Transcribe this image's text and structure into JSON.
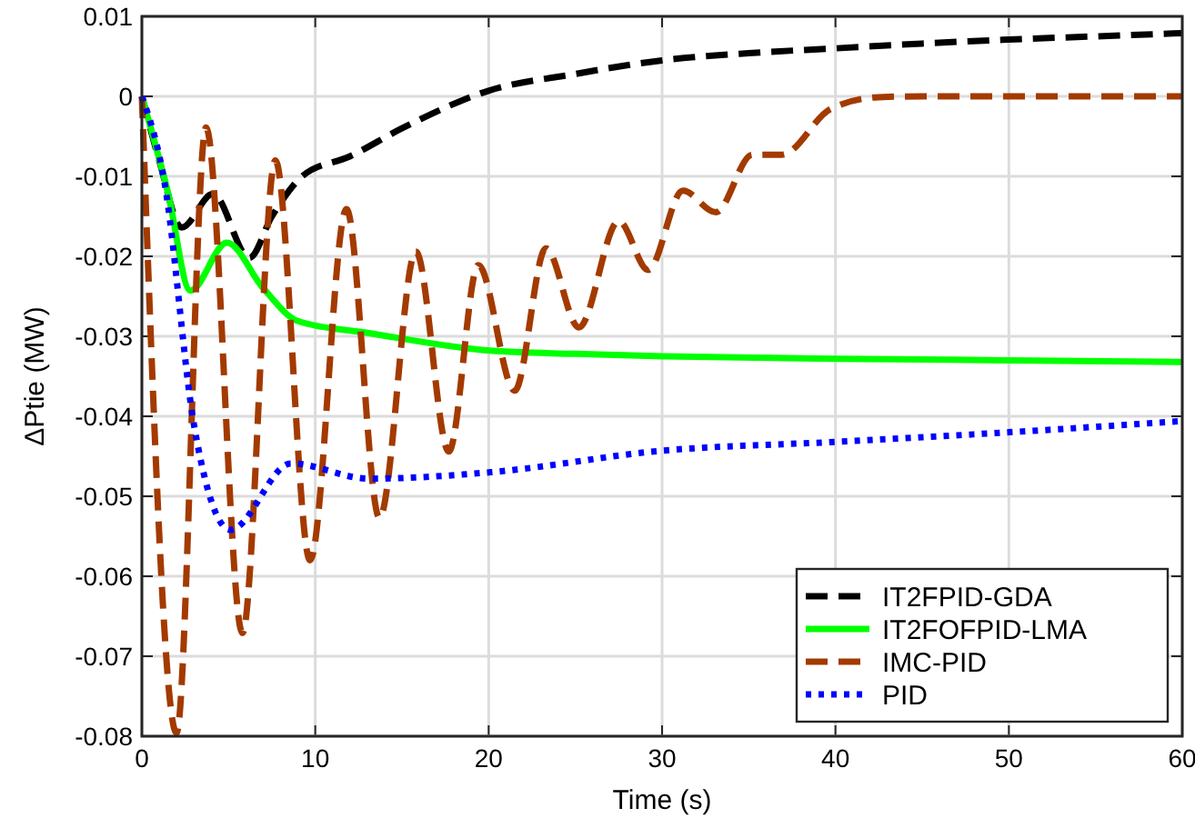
{
  "chart_data": {
    "type": "line",
    "xlabel": "Time (s)",
    "ylabel": "ΔPtie (MW)",
    "xlim": [
      0,
      60
    ],
    "ylim": [
      -0.08,
      0.01
    ],
    "xticks": [
      0,
      10,
      20,
      30,
      40,
      50,
      60
    ],
    "yticks": [
      {
        "value": 0.01,
        "label": "0.01"
      },
      0,
      {
        "value": -0.01,
        "label": "-0.01"
      },
      {
        "value": -0.02,
        "label": "-0.02"
      },
      {
        "value": -0.03,
        "label": "-0.03"
      },
      {
        "value": -0.04,
        "label": "-0.04"
      },
      {
        "value": -0.05,
        "label": "-0.05"
      },
      {
        "value": -0.06,
        "label": "-0.06"
      },
      {
        "value": -0.07,
        "label": "-0.07"
      },
      {
        "value": -0.08,
        "label": "-0.08"
      }
    ],
    "grid": true,
    "legend": "bottom right",
    "series": [
      {
        "name": "IT2FPID-GDA",
        "color": "#000000",
        "line_style": "dashed",
        "x": [
          0,
          1,
          2.3,
          4.1,
          6.2,
          7.5,
          9.3,
          12,
          15,
          20,
          25,
          30,
          35,
          40,
          45,
          50,
          55,
          60
        ],
        "values": [
          0,
          -0.008,
          -0.0164,
          -0.0122,
          -0.0202,
          -0.015,
          -0.0099,
          -0.0075,
          -0.004,
          0.0007,
          0.0028,
          0.0045,
          0.0054,
          0.006,
          0.0066,
          0.0071,
          0.0075,
          0.0079
        ]
      },
      {
        "name": "IT2FOFPID-LMA",
        "color": "#00ff00",
        "line_style": "solid",
        "x": [
          0,
          1.5,
          2.8,
          4.9,
          7,
          9,
          13.1,
          20.1,
          25,
          30,
          40,
          50,
          60
        ],
        "values": [
          0,
          -0.012,
          -0.0243,
          -0.0183,
          -0.024,
          -0.0281,
          -0.0296,
          -0.0318,
          -0.0322,
          -0.0325,
          -0.0328,
          -0.033,
          -0.0332
        ]
      },
      {
        "name": "IMC-PID",
        "color": "#a33a00",
        "line_style": "dashed",
        "x": [
          0,
          2,
          3.7,
          5.8,
          7.7,
          9.7,
          11.8,
          13.7,
          15.8,
          17.7,
          19.4,
          21.5,
          23.3,
          25.2,
          27.5,
          29.2,
          31.2,
          33.1,
          35.2,
          36.9,
          39.7,
          42.5,
          45,
          50,
          55,
          60
        ],
        "values": [
          0,
          -0.0796,
          -0.0039,
          -0.0671,
          -0.008,
          -0.058,
          -0.0141,
          -0.0527,
          -0.0194,
          -0.0444,
          -0.0211,
          -0.0368,
          -0.019,
          -0.0289,
          -0.0156,
          -0.0217,
          -0.0118,
          -0.0145,
          -0.0073,
          -0.0073,
          -0.0016,
          -0.0001,
          0,
          0,
          0,
          0
        ]
      },
      {
        "name": "PID",
        "color": "#0000ff",
        "line_style": "dotted",
        "x": [
          0,
          1.3,
          3,
          5.1,
          8.6,
          13.1,
          20.1,
          30,
          40,
          50,
          60
        ],
        "values": [
          0,
          -0.0107,
          -0.041,
          -0.0542,
          -0.0459,
          -0.0478,
          -0.047,
          -0.0443,
          -0.0432,
          -0.042,
          -0.0406
        ]
      }
    ]
  }
}
